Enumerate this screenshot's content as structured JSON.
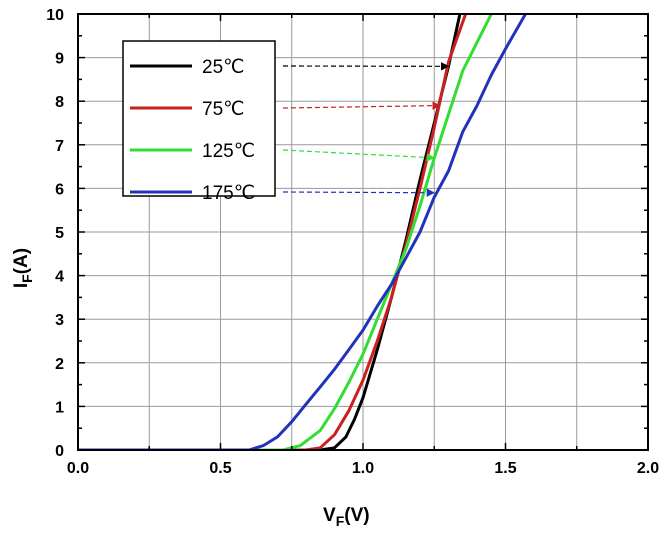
{
  "chart_data": {
    "type": "line",
    "xlabel": {
      "main": "V",
      "sub": "F",
      "unit": "(V)"
    },
    "ylabel": {
      "main": "I",
      "sub": "F",
      "unit": "(A)"
    },
    "xlim": [
      0,
      2
    ],
    "ylim": [
      0,
      10
    ],
    "x_ticks": [
      "0.0",
      "0.5",
      "1.0",
      "1.5",
      "2.0"
    ],
    "y_ticks": [
      "0",
      "1",
      "2",
      "3",
      "4",
      "5",
      "6",
      "7",
      "8",
      "9",
      "10"
    ],
    "grid": true,
    "legend_position": "top-left",
    "series": [
      {
        "name": "25℃",
        "color": "#000000",
        "points": [
          [
            0,
            0
          ],
          [
            0.85,
            0
          ],
          [
            0.9,
            0.05
          ],
          [
            0.94,
            0.3
          ],
          [
            0.97,
            0.7
          ],
          [
            1.0,
            1.2
          ],
          [
            1.05,
            2.3
          ],
          [
            1.1,
            3.5
          ],
          [
            1.15,
            4.8
          ],
          [
            1.2,
            6.2
          ],
          [
            1.25,
            7.5
          ],
          [
            1.3,
            8.8
          ],
          [
            1.34,
            10
          ]
        ],
        "annotation_arrow_target": [
          1.3,
          8.8
        ]
      },
      {
        "name": "75℃",
        "color": "#cc1f1f",
        "points": [
          [
            0,
            0
          ],
          [
            0.8,
            0
          ],
          [
            0.85,
            0.05
          ],
          [
            0.9,
            0.35
          ],
          [
            0.95,
            0.9
          ],
          [
            1.0,
            1.6
          ],
          [
            1.05,
            2.5
          ],
          [
            1.1,
            3.5
          ],
          [
            1.15,
            4.7
          ],
          [
            1.2,
            6.0
          ],
          [
            1.25,
            7.4
          ],
          [
            1.3,
            8.9
          ],
          [
            1.36,
            10
          ]
        ],
        "annotation_arrow_target": [
          1.27,
          7.9
        ]
      },
      {
        "name": "125℃",
        "color": "#33dd33",
        "points": [
          [
            0,
            0
          ],
          [
            0.72,
            0
          ],
          [
            0.78,
            0.1
          ],
          [
            0.85,
            0.45
          ],
          [
            0.9,
            0.95
          ],
          [
            0.95,
            1.55
          ],
          [
            1.0,
            2.2
          ],
          [
            1.05,
            3.0
          ],
          [
            1.1,
            3.8
          ],
          [
            1.15,
            4.6
          ],
          [
            1.2,
            5.6
          ],
          [
            1.25,
            6.7
          ],
          [
            1.3,
            7.7
          ],
          [
            1.35,
            8.7
          ],
          [
            1.45,
            10
          ]
        ],
        "annotation_arrow_target": [
          1.25,
          6.7
        ]
      },
      {
        "name": "175℃",
        "color": "#2233bb",
        "points": [
          [
            0,
            0
          ],
          [
            0.6,
            0
          ],
          [
            0.65,
            0.1
          ],
          [
            0.7,
            0.3
          ],
          [
            0.75,
            0.65
          ],
          [
            0.8,
            1.05
          ],
          [
            0.85,
            1.45
          ],
          [
            0.9,
            1.85
          ],
          [
            0.95,
            2.3
          ],
          [
            1.0,
            2.75
          ],
          [
            1.05,
            3.3
          ],
          [
            1.1,
            3.8
          ],
          [
            1.15,
            4.4
          ],
          [
            1.2,
            5.0
          ],
          [
            1.25,
            5.8
          ],
          [
            1.3,
            6.4
          ],
          [
            1.35,
            7.3
          ],
          [
            1.4,
            7.9
          ],
          [
            1.45,
            8.6
          ],
          [
            1.5,
            9.2
          ],
          [
            1.57,
            10
          ]
        ],
        "annotation_arrow_target": [
          1.25,
          5.9
        ]
      }
    ]
  }
}
